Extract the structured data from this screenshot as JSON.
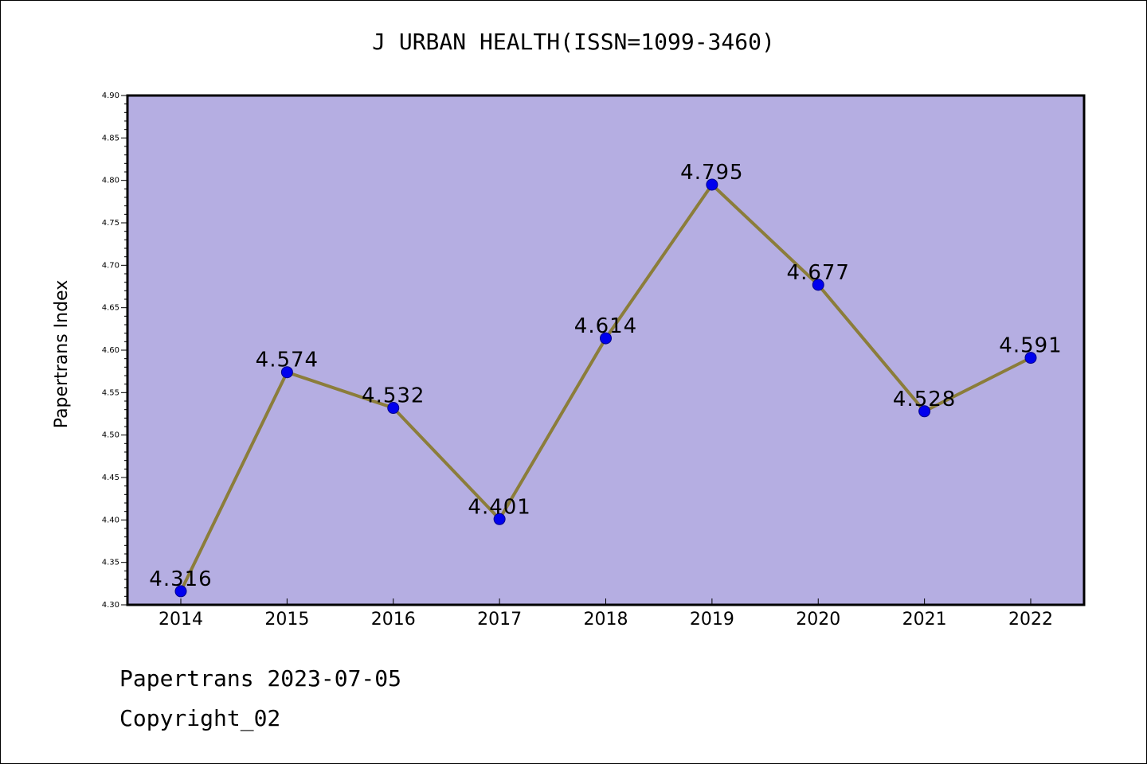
{
  "chart_data": {
    "type": "line",
    "title": "J URBAN HEALTH(ISSN=1099-3460)",
    "ylabel": "Papertrans Index",
    "xlabel": "",
    "categories": [
      "2014",
      "2015",
      "2016",
      "2017",
      "2018",
      "2019",
      "2020",
      "2021",
      "2022"
    ],
    "values": [
      4.316,
      4.574,
      4.532,
      4.401,
      4.614,
      4.795,
      4.677,
      4.528,
      4.591
    ],
    "data_labels": [
      "4.316",
      "4.574",
      "4.532",
      "4.401",
      "4.614",
      "4.795",
      "4.677",
      "4.528",
      "4.591"
    ],
    "ylim": [
      4.3,
      4.9
    ],
    "y_ticks": [
      "4.30",
      "4.35",
      "4.40",
      "4.45",
      "4.50",
      "4.55",
      "4.60",
      "4.65",
      "4.70",
      "4.75",
      "4.80",
      "4.85",
      "4.90"
    ],
    "grid": false,
    "legend": "none",
    "colors": {
      "plot_background": "#b5aee2",
      "line": "#8b7d3a",
      "marker": "#0000ee",
      "marker_edge": "#00008b"
    }
  },
  "footer": {
    "date_line": "Papertrans 2023-07-05",
    "copyright": "Copyright_02"
  }
}
